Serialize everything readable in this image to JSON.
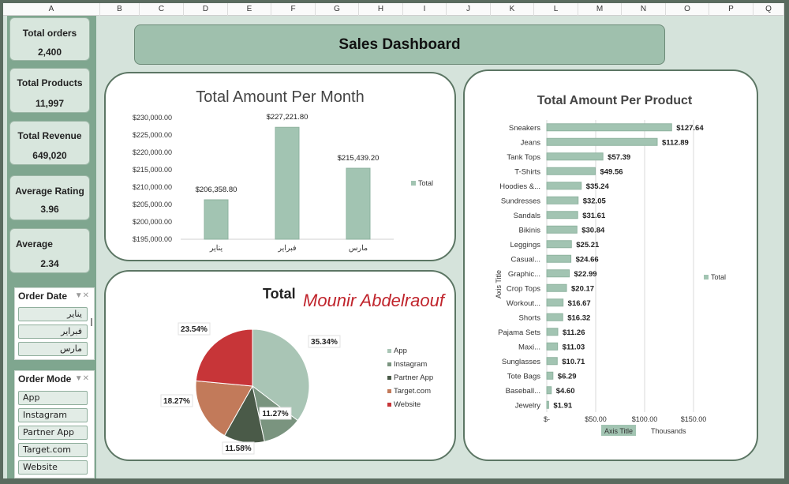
{
  "columns": [
    "A",
    "B",
    "C",
    "D",
    "E",
    "F",
    "G",
    "H",
    "I",
    "J",
    "K",
    "L",
    "M",
    "N",
    "O",
    "P",
    "Q"
  ],
  "dashboard_title": "Sales Dashboard",
  "kpis": [
    {
      "label": "Total orders",
      "value": "2,400"
    },
    {
      "label": "Total Products",
      "value": "11,997"
    },
    {
      "label": "Total Revenue",
      "value": "649,020"
    },
    {
      "label": "Average Rating",
      "value": "3.96"
    },
    {
      "label": "Average",
      "value": "2.34"
    }
  ],
  "slicers": {
    "order_date": {
      "title": "Order Date",
      "items": [
        "يناير",
        "فبراير",
        "مارس"
      ]
    },
    "order_mode": {
      "title": "Order Mode",
      "items": [
        "App",
        "Instagram",
        "Partner App",
        "Target.com",
        "Website"
      ]
    }
  },
  "colors": {
    "bar": "#a2c4b2",
    "bar_edge": "#8fb3a0",
    "sidebar": "#7fa68f",
    "card_border": "#5c7664"
  },
  "chart_data": [
    {
      "type": "bar",
      "title": "Total Amount Per Month",
      "categories": [
        "يناير",
        "فبراير",
        "مارس"
      ],
      "series": [
        {
          "name": "Total",
          "values": [
            206358.8,
            227221.8,
            215439.2
          ]
        }
      ],
      "data_labels": [
        "$206,358.80",
        "$227,221.80",
        "$215,439.20"
      ],
      "ylim": [
        195000,
        230000
      ],
      "yticks": [
        "$195,000.00",
        "$200,000.00",
        "$205,000.00",
        "$210,000.00",
        "$215,000.00",
        "$220,000.00",
        "$225,000.00",
        "$230,000.00"
      ],
      "legend": "right"
    },
    {
      "type": "pie",
      "title": "Total",
      "watermark": "Mounir Abdelraouf",
      "categories": [
        "App",
        "Instagram",
        "Partner App",
        "Target.com",
        "Website"
      ],
      "values": [
        35.34,
        11.27,
        11.58,
        18.27,
        23.54
      ],
      "data_labels": [
        "35.34%",
        "11.27%",
        "11.58%",
        "18.27%",
        "23.54%"
      ],
      "colors": [
        "#a9c5b5",
        "#7a947f",
        "#4a5a48",
        "#c27a5a",
        "#c73538"
      ],
      "legend": "right"
    },
    {
      "type": "bar",
      "orientation": "horizontal",
      "title": "Total Amount Per Product",
      "categories": [
        "Sneakers",
        "Jeans",
        "Tank Tops",
        "T-Shirts",
        "Hoodies &...",
        "Sundresses",
        "Sandals",
        "Bikinis",
        "Leggings",
        "Casual...",
        "Graphic...",
        "Crop Tops",
        "Workout...",
        "Shorts",
        "Pajama Sets",
        "Maxi...",
        "Sunglasses",
        "Tote Bags",
        "Baseball...",
        "Jewelry"
      ],
      "series": [
        {
          "name": "Total",
          "values": [
            127.64,
            112.89,
            57.39,
            49.56,
            35.24,
            32.05,
            31.61,
            30.84,
            25.21,
            24.66,
            22.99,
            20.17,
            16.67,
            16.32,
            11.26,
            11.03,
            10.71,
            6.29,
            4.6,
            1.91
          ]
        }
      ],
      "data_labels": [
        "$127.64",
        "$112.89",
        "$57.39",
        "$49.56",
        "$35.24",
        "$32.05",
        "$31.61",
        "$30.84",
        "$25.21",
        "$24.66",
        "$22.99",
        "$20.17",
        "$16.67",
        "$16.32",
        "$11.26",
        "$11.03",
        "$10.71",
        "$6.29",
        "$4.60",
        "$1.91"
      ],
      "xlim": [
        0,
        150
      ],
      "xticks": [
        "$-",
        "$50.00",
        "$100.00",
        "$150.00"
      ],
      "xlabel": "Axis Title",
      "ylabel": "Axis Title",
      "display_units": "Thousands",
      "legend": "right"
    }
  ]
}
